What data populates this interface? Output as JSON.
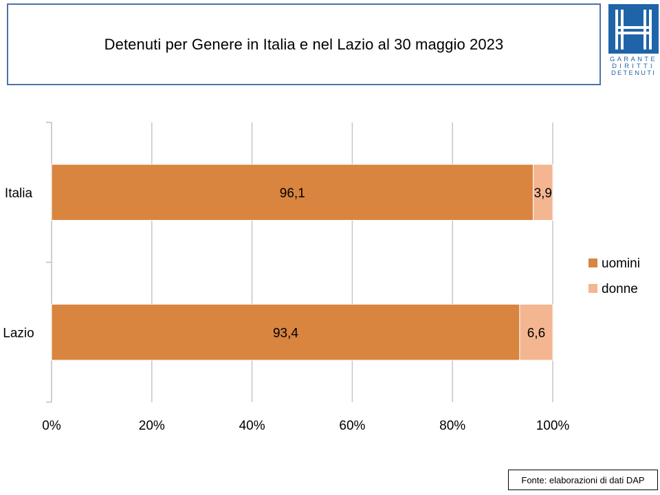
{
  "title": "Detenuti per Genere in Italia e nel Lazio al 30 maggio 2023",
  "logo": {
    "text_line1": "GARANTE",
    "text_line2": "DIRITTI",
    "text_line3": "DETENUTI",
    "color": "#1f64a8"
  },
  "source_note": "Fonte: elaborazioni di dati DAP",
  "chart_data": {
    "type": "bar",
    "orientation": "horizontal",
    "stacked": "percent",
    "categories": [
      "Italia",
      "Lazio"
    ],
    "series": [
      {
        "name": "uomini",
        "values": [
          96.1,
          93.4
        ],
        "labels": [
          "96,1",
          "93,4"
        ],
        "color": "#d9843f"
      },
      {
        "name": "donne",
        "values": [
          3.9,
          6.6
        ],
        "labels": [
          "3,9",
          "6,6"
        ],
        "color": "#f4b591"
      }
    ],
    "xlim": [
      0,
      100
    ],
    "xticks": [
      "0%",
      "20%",
      "40%",
      "60%",
      "80%",
      "100%"
    ],
    "grid": true,
    "legend": "right"
  }
}
